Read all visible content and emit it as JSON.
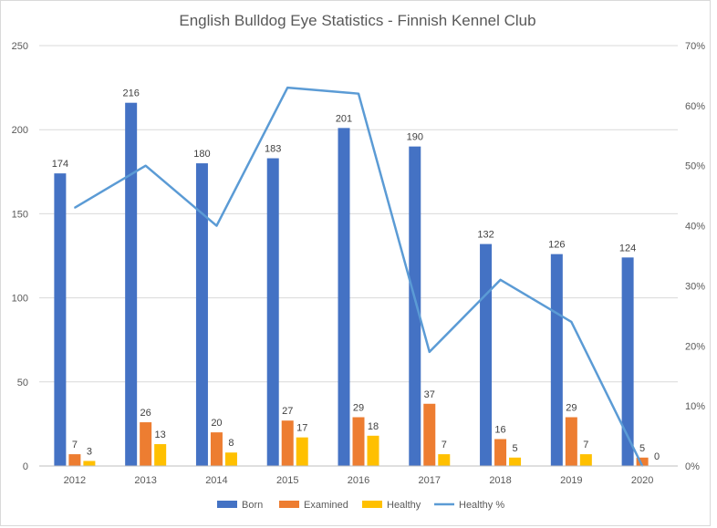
{
  "chart_data": {
    "type": "bar",
    "title": "English Bulldog  Eye Statistics - Finnish Kennel Club",
    "categories": [
      "2012",
      "2013",
      "2014",
      "2015",
      "2016",
      "2017",
      "2018",
      "2019",
      "2020"
    ],
    "series": [
      {
        "name": "Born",
        "kind": "bar",
        "axis": "left",
        "color": "#4472C4",
        "values": [
          174,
          216,
          180,
          183,
          201,
          190,
          132,
          126,
          124
        ],
        "labels": [
          "174",
          "216",
          "180",
          "183",
          "201",
          "190",
          "132",
          "126",
          "124"
        ]
      },
      {
        "name": "Examined",
        "kind": "bar",
        "axis": "left",
        "color": "#ED7D31",
        "values": [
          7,
          26,
          20,
          27,
          29,
          37,
          16,
          29,
          5
        ],
        "labels": [
          "7",
          "26",
          "20",
          "27",
          "29",
          "37",
          "16",
          "29",
          "5"
        ]
      },
      {
        "name": "Healthy",
        "kind": "bar",
        "axis": "left",
        "color": "#FFC000",
        "values": [
          3,
          13,
          8,
          17,
          18,
          7,
          5,
          7,
          0
        ],
        "labels": [
          "3",
          "13",
          "8",
          "17",
          "18",
          "7",
          "5",
          "7",
          "0"
        ]
      },
      {
        "name": "Healthy %",
        "kind": "line",
        "axis": "right",
        "color": "#5B9BD5",
        "values": [
          43,
          50,
          40,
          63,
          62,
          19,
          31,
          24,
          0
        ]
      }
    ],
    "ylim_left": [
      0,
      250
    ],
    "yticks_left": [
      "0",
      "50",
      "100",
      "150",
      "200",
      "250"
    ],
    "ylim_right": [
      0,
      70
    ],
    "yticks_right": [
      "0%",
      "10%",
      "20%",
      "30%",
      "40%",
      "50%",
      "60%",
      "70%"
    ],
    "grid": true,
    "legend_position": "bottom"
  }
}
